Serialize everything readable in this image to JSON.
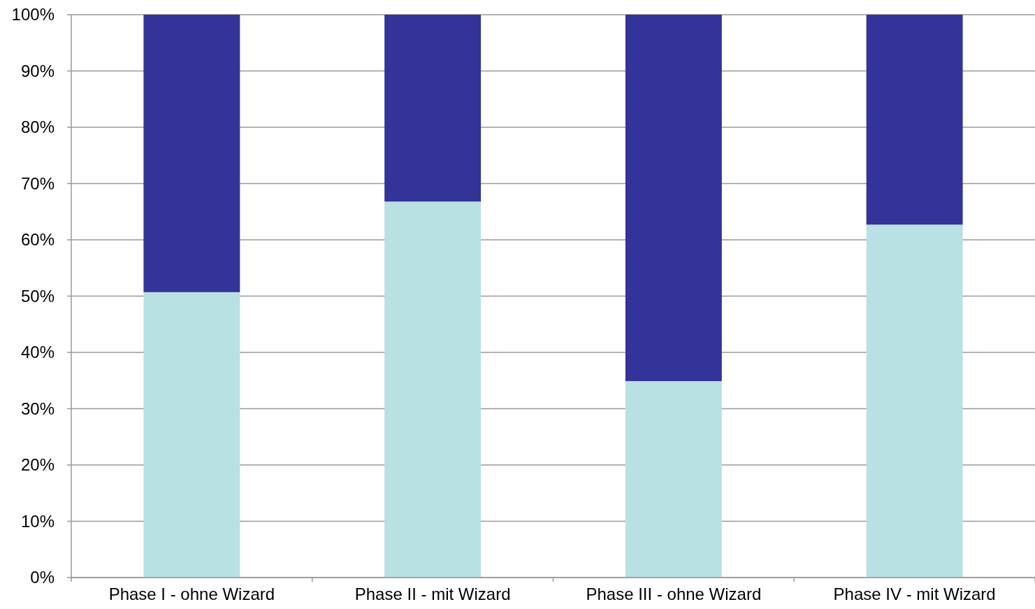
{
  "chart_data": {
    "type": "bar",
    "stacked": true,
    "categories": [
      "Phase I - ohne Wizard",
      "Phase II - mit Wizard",
      "Phase III - ohne Wizard",
      "Phase IV - mit Wizard"
    ],
    "series": [
      {
        "color": "#b9e0e3",
        "values": [
          50.7,
          66.8,
          34.9,
          62.7
        ]
      },
      {
        "color": "#333399",
        "values": [
          49.3,
          33.2,
          65.1,
          37.3
        ]
      }
    ],
    "ylim": [
      0,
      100
    ],
    "yticks": [
      {
        "value": 0,
        "label": "0%"
      },
      {
        "value": 10,
        "label": "10%"
      },
      {
        "value": 20,
        "label": "20%"
      },
      {
        "value": 30,
        "label": "30%"
      },
      {
        "value": 40,
        "label": "40%"
      },
      {
        "value": 50,
        "label": "50%"
      },
      {
        "value": 60,
        "label": "60%"
      },
      {
        "value": 70,
        "label": "70%"
      },
      {
        "value": 80,
        "label": "80%"
      },
      {
        "value": 90,
        "label": "90%"
      },
      {
        "value": 100,
        "label": "100%"
      }
    ],
    "grid": "y"
  }
}
